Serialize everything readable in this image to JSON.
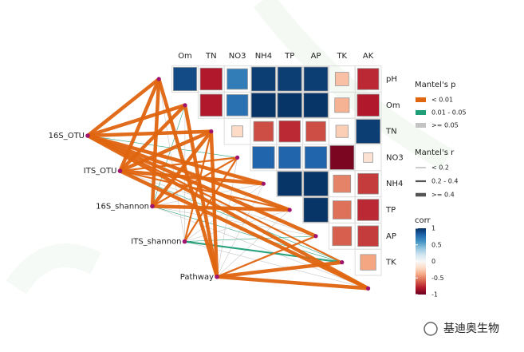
{
  "chart_data": {
    "type": "mantel_heatmap",
    "variables": [
      "pH",
      "Om",
      "TN",
      "NO3",
      "NH4",
      "TP",
      "AP",
      "TK",
      "AK"
    ],
    "corr": [
      [
        0.9,
        -0.8,
        0.7,
        0.95,
        0.95,
        0.95,
        -0.3,
        -0.75
      ],
      [
        -0.8,
        0.75,
        0.98,
        0.98,
        0.98,
        -0.35,
        -0.8
      ],
      [
        -0.2,
        -0.65,
        -0.75,
        -0.65,
        -0.25,
        0.95
      ],
      [
        0.8,
        0.8,
        0.8,
        -0.95,
        -0.15
      ],
      [
        0.98,
        0.98,
        -0.5,
        -0.7
      ],
      [
        0.98,
        -0.55,
        -0.75
      ],
      [
        -0.6,
        -0.7
      ],
      [
        -0.4
      ]
    ],
    "nodes": [
      "16S_OTU",
      "ITS_OTU",
      "16S_shannon",
      "ITS_shannon",
      "Pathway"
    ],
    "mantel_p": [
      [
        "< 0.01",
        "< 0.01",
        "< 0.01",
        "0.01 - 0.05",
        "< 0.01",
        "< 0.01",
        "< 0.01",
        "< 0.01",
        "< 0.01"
      ],
      [
        "< 0.01",
        "< 0.01",
        "< 0.01",
        "< 0.01",
        "< 0.01",
        "< 0.01",
        ">= 0.05",
        "0.01 - 0.05",
        "< 0.01"
      ],
      [
        "< 0.01",
        "0.01 - 0.05",
        "< 0.01",
        "< 0.01",
        ">= 0.05",
        "< 0.01",
        ">= 0.05",
        "0.01 - 0.05",
        ">= 0.05"
      ],
      [
        ">= 0.05",
        ">= 0.05",
        "< 0.01",
        "< 0.01",
        ">= 0.05",
        ">= 0.05",
        "0.01 - 0.05",
        "0.01 - 0.05",
        ">= 0.05"
      ],
      [
        "< 0.01",
        "< 0.01",
        "< 0.01",
        ">= 0.05",
        ">= 0.05",
        ">= 0.05",
        "< 0.01",
        "< 0.01",
        "< 0.01"
      ]
    ],
    "mantel_r": [
      [
        ">= 0.4",
        ">= 0.4",
        ">= 0.4",
        "< 0.2",
        ">= 0.4",
        ">= 0.4",
        ">= 0.4",
        "0.2 - 0.4",
        ">= 0.4"
      ],
      [
        ">= 0.4",
        ">= 0.4",
        ">= 0.4",
        "0.2 - 0.4",
        ">= 0.4",
        "0.2 - 0.4",
        "< 0.2",
        "< 0.2",
        ">= 0.4"
      ],
      [
        ">= 0.4",
        "< 0.2",
        ">= 0.4",
        "0.2 - 0.4",
        "< 0.2",
        ">= 0.4",
        "< 0.2",
        "< 0.2",
        "< 0.2"
      ],
      [
        "< 0.2",
        "< 0.2",
        "0.2 - 0.4",
        "0.2 - 0.4",
        "< 0.2",
        "< 0.2",
        "< 0.2",
        "0.2 - 0.4",
        "< 0.2"
      ],
      [
        ">= 0.4",
        ">= 0.4",
        ">= 0.4",
        "< 0.2",
        "< 0.2",
        "< 0.2",
        "0.2 - 0.4",
        ">= 0.4",
        ">= 0.4"
      ]
    ],
    "legend_p": {
      "title": "Mantel's p",
      "labels": [
        "< 0.01",
        "0.01 - 0.05",
        ">= 0.05"
      ],
      "colors": [
        "#e0650f",
        "#1f9e78",
        "#c4c4c4"
      ]
    },
    "legend_r": {
      "title": "Mantel's r",
      "labels": [
        "< 0.2",
        "0.2 - 0.4",
        ">= 0.4"
      ]
    },
    "colorbar": {
      "title": "corr",
      "lim": [
        -1,
        1
      ],
      "ticks": [
        1,
        0.5,
        0,
        -0.5,
        -1
      ]
    },
    "watermark": "基迪奥生物"
  }
}
